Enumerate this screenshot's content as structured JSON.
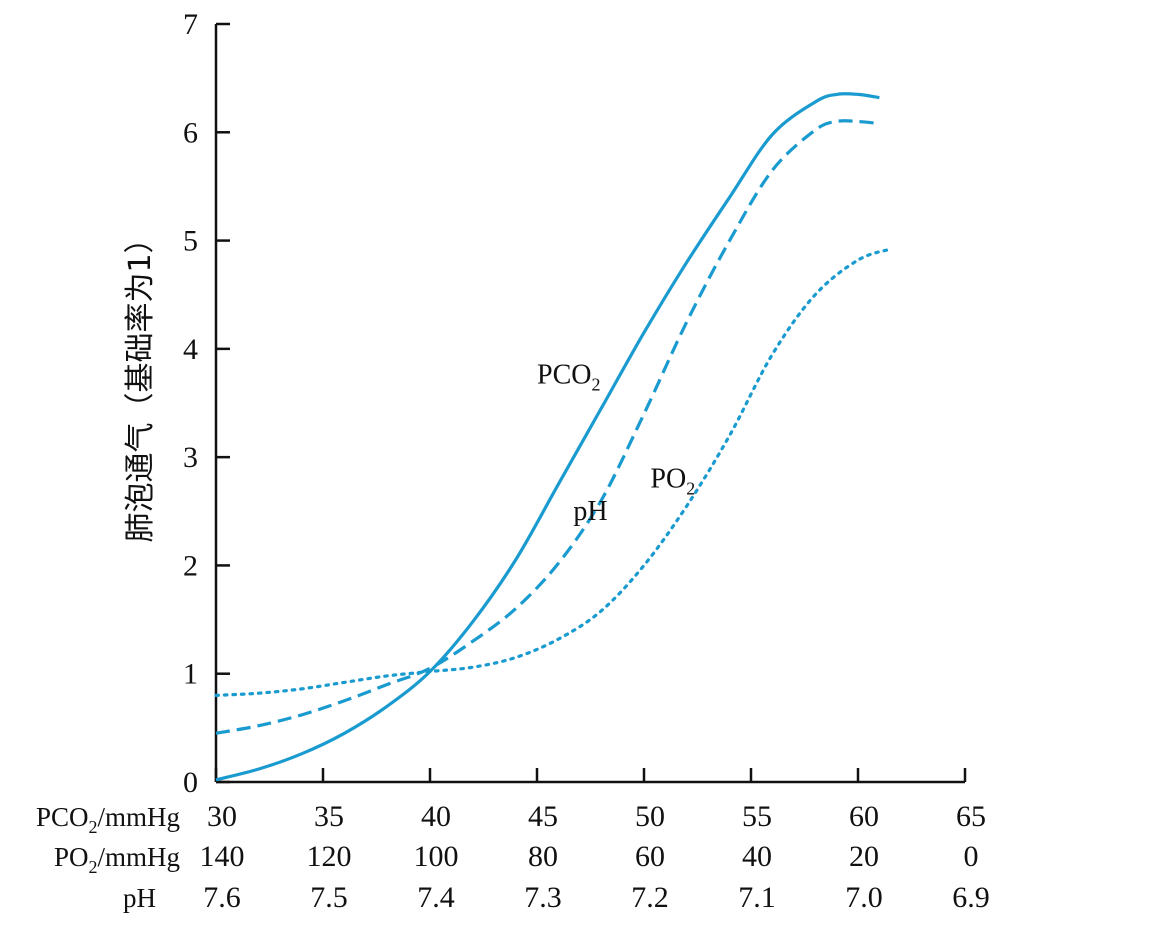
{
  "chart_data": {
    "type": "line",
    "xlabel_rows": [
      {
        "label": "PCO",
        "sub": "2",
        "suffix": "/mmHg",
        "ticks": [
          "30",
          "35",
          "40",
          "45",
          "50",
          "55",
          "60",
          "65"
        ]
      },
      {
        "label": "PO",
        "sub": "2",
        "suffix": "/mmHg",
        "ticks": [
          "140",
          "120",
          "100",
          "80",
          "60",
          "40",
          "20",
          "0"
        ]
      },
      {
        "label": "pH",
        "sub": "",
        "suffix": "",
        "ticks": [
          "7.6",
          "7.5",
          "7.4",
          "7.3",
          "7.2",
          "7.1",
          "7.0",
          "6.9"
        ]
      }
    ],
    "ylabel": "肺泡通气（基础率为1）",
    "ylim": [
      0,
      7
    ],
    "yticks": [
      "0",
      "1",
      "2",
      "3",
      "4",
      "5",
      "6",
      "7"
    ],
    "xlim": [
      30,
      65
    ],
    "x_axis_basis": "PCO2 (mmHg)",
    "series": [
      {
        "name": "PCO",
        "name_sub": "2",
        "style": "solid",
        "color": "#1a9bd0",
        "x": [
          30,
          32,
          34,
          36,
          38,
          40,
          42,
          44,
          46,
          48,
          50,
          52,
          54,
          56,
          58,
          59,
          60,
          61
        ],
        "y": [
          0.02,
          0.12,
          0.26,
          0.45,
          0.7,
          1.02,
          1.48,
          2.05,
          2.75,
          3.45,
          4.15,
          4.8,
          5.4,
          5.98,
          6.28,
          6.35,
          6.35,
          6.32
        ]
      },
      {
        "name": "pH",
        "name_sub": "",
        "style": "dashed",
        "color": "#1a9bd0",
        "x": [
          30,
          32,
          34,
          36,
          38,
          40,
          42,
          44,
          46,
          48,
          50,
          52,
          54,
          56,
          58,
          59,
          60,
          61
        ],
        "y": [
          0.45,
          0.52,
          0.62,
          0.75,
          0.9,
          1.05,
          1.3,
          1.6,
          2.02,
          2.6,
          3.4,
          4.25,
          5.0,
          5.65,
          6.02,
          6.1,
          6.1,
          6.08
        ]
      },
      {
        "name": "PO",
        "name_sub": "2",
        "style": "dotted",
        "color": "#1a9bd0",
        "x": [
          30,
          32,
          34,
          36,
          38,
          40,
          42,
          44,
          46,
          48,
          50,
          52,
          54,
          56,
          58,
          60,
          61.5
        ],
        "y": [
          0.8,
          0.82,
          0.86,
          0.92,
          0.98,
          1.02,
          1.06,
          1.15,
          1.32,
          1.58,
          2.0,
          2.55,
          3.2,
          3.95,
          4.5,
          4.82,
          4.92
        ]
      }
    ],
    "grid": false,
    "legend": "inline labels"
  }
}
